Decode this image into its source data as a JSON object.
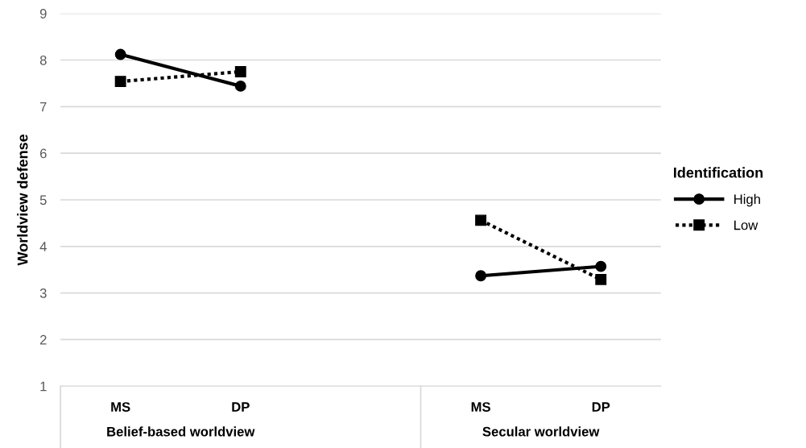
{
  "chart_data": {
    "type": "line",
    "ylabel": "Worldview defense",
    "legend_title": "Identification",
    "categories": [
      "MS",
      "DP",
      null,
      "MS",
      "DP"
    ],
    "series": [
      {
        "name": "High",
        "color": "#000000",
        "values": [
          8.12,
          7.44,
          null,
          3.37,
          3.57
        ],
        "marker": "circle",
        "line_style": "solid"
      },
      {
        "name": "Low",
        "color": "#000000",
        "values": [
          7.54,
          7.75,
          null,
          4.56,
          3.29
        ],
        "marker": "square",
        "line_style": "dotted"
      }
    ],
    "annotations": [
      "Belief-based worldview",
      "Secular worldview"
    ],
    "ylim": [
      1,
      9
    ],
    "yticks": [
      1,
      2,
      3,
      4,
      5,
      6,
      7,
      8,
      9
    ],
    "grid": "y",
    "legend": "right"
  }
}
